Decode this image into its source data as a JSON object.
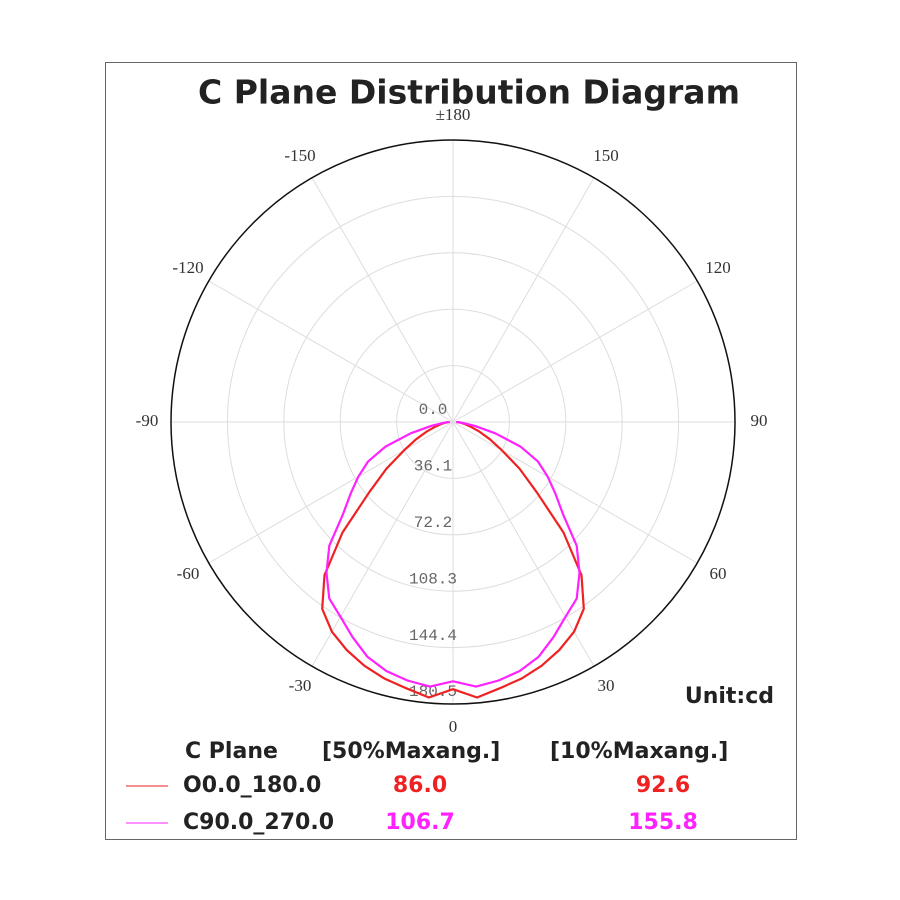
{
  "chart_data": {
    "type": "polar",
    "title": "C Plane Distribution Diagram",
    "unit_label": "Unit:cd",
    "x": [
      -90,
      -85,
      -80,
      -75,
      -70,
      -65,
      -60,
      -55,
      -50,
      -45,
      -40,
      -35,
      -30,
      -25,
      -20,
      -15,
      -10,
      -5,
      0,
      5,
      10,
      15,
      20,
      25,
      30,
      35,
      40,
      45,
      50,
      55,
      60,
      65,
      70,
      75,
      80,
      85,
      90
    ],
    "series": [
      {
        "name": "O0.0_180.0",
        "color": "#ee2222",
        "values": [
          3,
          5,
          8,
          12,
          18,
          26,
          36,
          52,
          70,
          100,
          128,
          146,
          155,
          161,
          166,
          170,
          173,
          177,
          171,
          177,
          173,
          170,
          166,
          161,
          155,
          146,
          128,
          100,
          70,
          52,
          36,
          26,
          18,
          12,
          8,
          5,
          3
        ]
      },
      {
        "name": "C90.0_270.0",
        "color": "#ff22ff",
        "values": [
          2,
          6,
          14,
          28,
          46,
          60,
          70,
          80,
          92,
          112,
          126,
          138,
          144,
          152,
          160,
          165,
          168,
          170,
          166,
          170,
          168,
          165,
          160,
          152,
          144,
          138,
          126,
          112,
          92,
          80,
          70,
          60,
          46,
          28,
          14,
          6,
          2
        ]
      }
    ],
    "rlim": [
      0,
      180.5
    ],
    "rticks": [
      {
        "value": 0,
        "label": "0.0"
      },
      36.1,
      72.2,
      108.3,
      144.4,
      180.5
    ],
    "angle_ticks": [
      0,
      30,
      60,
      90,
      120,
      150,
      {
        "value": 180,
        "label": "±180"
      },
      -150,
      -120,
      -90,
      -60,
      -30
    ],
    "grid": true,
    "beam_table": {
      "headers": [
        "C Plane",
        "[50%Maxang.]",
        "[10%Maxang.]"
      ],
      "rows": [
        [
          "86.0",
          "92.6"
        ],
        [
          "106.7",
          "155.8"
        ]
      ]
    }
  }
}
